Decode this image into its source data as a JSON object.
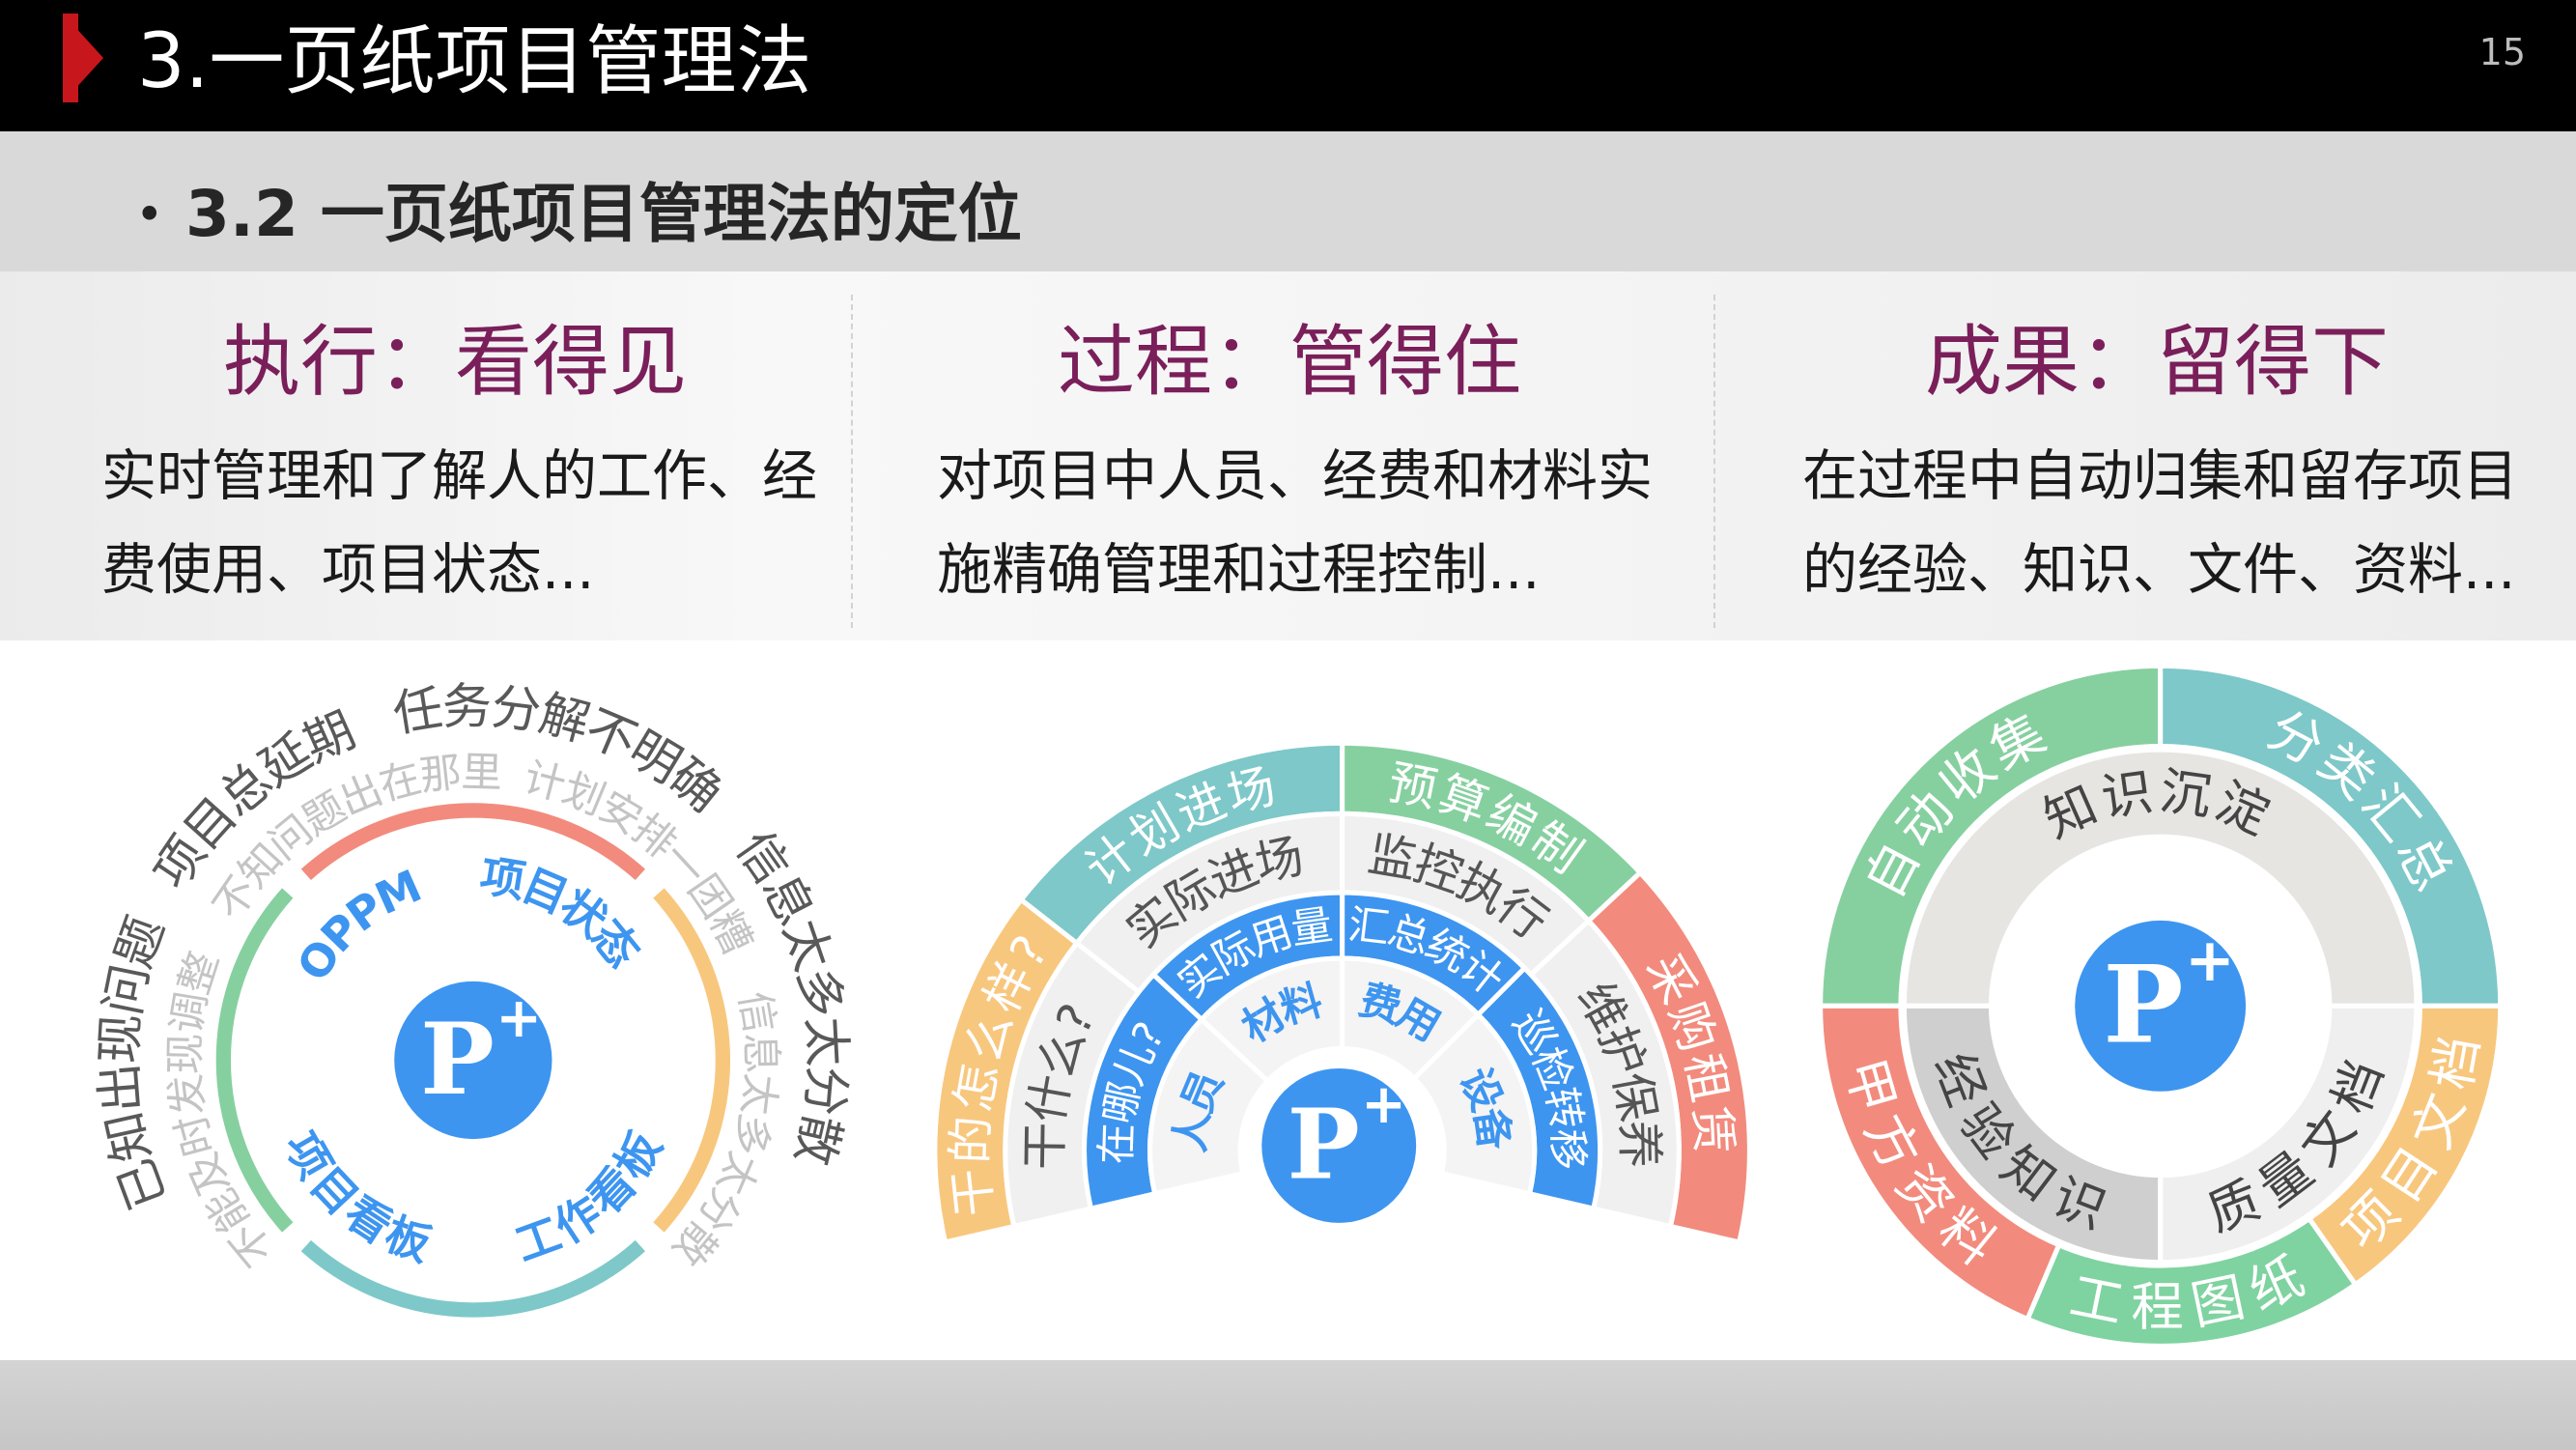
{
  "header": {
    "title": "3.一页纸项目管理法",
    "page_number": "15"
  },
  "section": {
    "bullet": "•",
    "subtitle": "3.2 一页纸项目管理法的定位"
  },
  "columns": [
    {
      "heading": "执行：看得见",
      "lines": [
        "实时管理和了解人的工作、经",
        "费使用、项目状态..."
      ]
    },
    {
      "heading": "过程：管得住",
      "lines": [
        "对项目中人员、经费和材料实",
        "施精确管理和过程控制..."
      ]
    },
    {
      "heading": "成果：留得下",
      "lines": [
        "在过程中自动归集和留存项目",
        "的经验、知识、文件、资料..."
      ]
    }
  ],
  "logo": {
    "letter": "P",
    "sup": "+"
  },
  "colors": {
    "accent_red": "#c8161d",
    "heading": "#7a1f5a",
    "blue": "#3d95f0",
    "orange": "#f8c77e",
    "teal": "#7ec8c9",
    "green": "#86d0a0",
    "red": "#f28b7d"
  },
  "diagram_left": {
    "ring_labels": [
      "OPPM",
      "项目状态",
      "项目看板",
      "工作看板"
    ],
    "outer_problems": [
      "已知出现问题",
      "项目总延期",
      "任务分解不明确",
      "信息太多太分散"
    ],
    "inner_problems": [
      "不能及时发现调整",
      "不知问题出在那里",
      "计划安排一团糟",
      "信息太多太分散"
    ]
  },
  "diagram_middle": {
    "outer": [
      "干的怎么样?",
      "计划进场",
      "预算编制",
      "采购租赁"
    ],
    "middle": [
      "干什么?",
      "实际进场",
      "监控执行",
      "维护保养"
    ],
    "blue": [
      "在哪儿?",
      "实际用量",
      "汇总统计",
      "巡检转移"
    ],
    "inner": [
      "人员",
      "材料",
      "费用",
      "设备"
    ]
  },
  "diagram_right": {
    "outer": [
      "自动收集",
      "分类汇总",
      "项目文档",
      "工程图纸",
      "甲方资料"
    ],
    "inner": [
      "知识沉淀",
      "质量文档",
      "经验知识"
    ]
  }
}
